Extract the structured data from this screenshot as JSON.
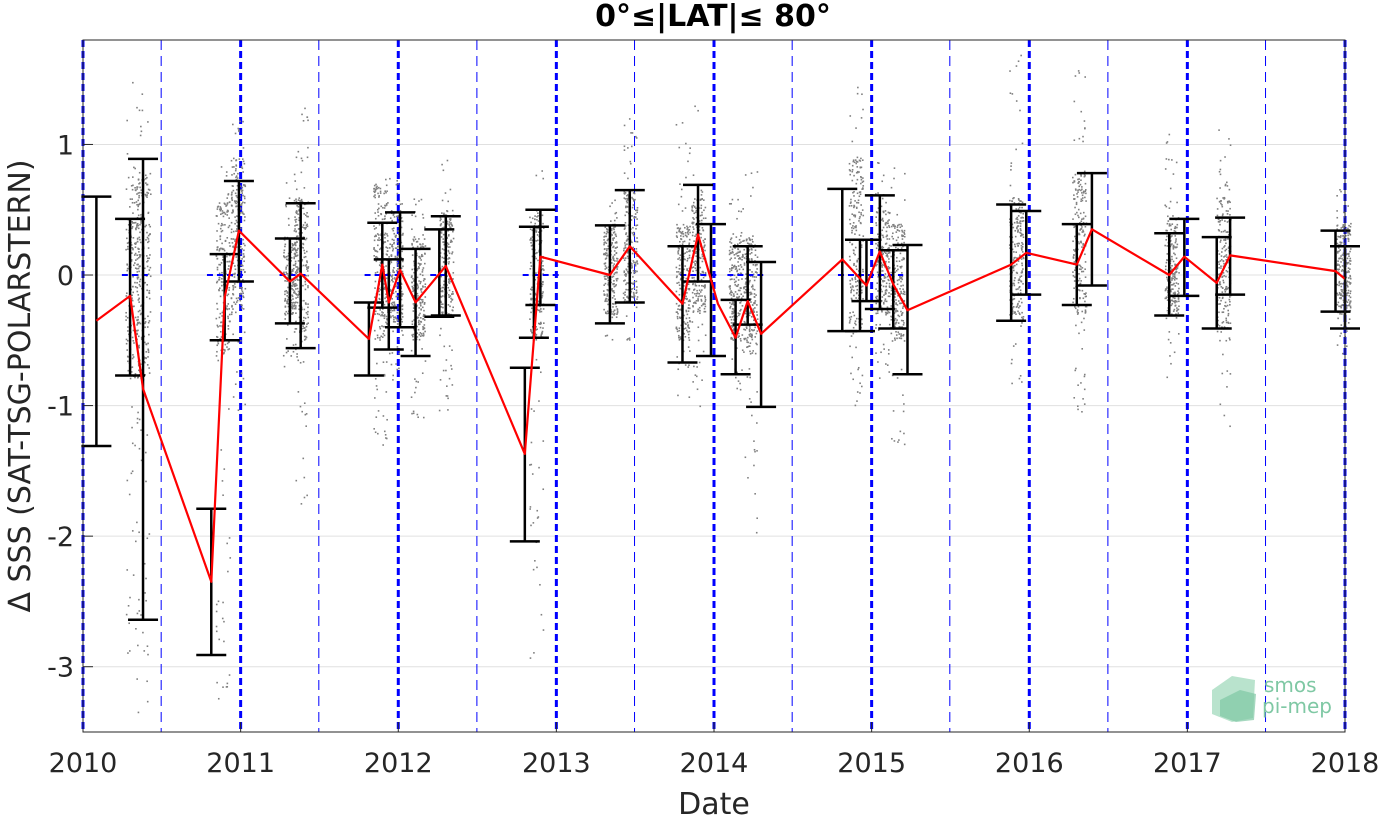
{
  "chart_data": {
    "type": "scatter",
    "title": "0°≤|LAT|≤ 80°",
    "xlabel": "Date",
    "ylabel": "Δ SSS (SAT-TSG-POLARSTERN)",
    "xlim": [
      "2010-01-01",
      "2018-01-01"
    ],
    "ylim": [
      -3.5,
      1.8
    ],
    "x_ticks": [
      "2010",
      "2011",
      "2012",
      "2013",
      "2014",
      "2015",
      "2016",
      "2017",
      "2018"
    ],
    "y_ticks": [
      -3,
      -2,
      -1,
      0,
      1
    ],
    "y_tick_labels": [
      "-3",
      "-2",
      "-1",
      "0",
      "1"
    ],
    "grid": true,
    "colors": {
      "mean_line": "#ff0000",
      "errorbar": "#000000",
      "scatter": "#808080",
      "year_lines": "#0000ff",
      "zero_segments": "#0000ff",
      "grid": "#e0e0e0"
    },
    "mean_series": [
      {
        "x": "2010-02-01",
        "y": -0.35
      },
      {
        "x": "2010-04-20",
        "y": -0.16
      },
      {
        "x": "2010-05-20",
        "y": -0.87
      },
      {
        "x": "2010-10-25",
        "y": -2.35
      },
      {
        "x": "2010-11-25",
        "y": -0.17
      },
      {
        "x": "2010-12-28",
        "y": 0.34
      },
      {
        "x": "2011-04-25",
        "y": -0.05
      },
      {
        "x": "2011-05-20",
        "y": 0.01
      },
      {
        "x": "2011-10-25",
        "y": -0.49
      },
      {
        "x": "2011-11-25",
        "y": 0.08
      },
      {
        "x": "2011-12-10",
        "y": -0.21
      },
      {
        "x": "2012-01-05",
        "y": 0.04
      },
      {
        "x": "2012-02-10",
        "y": -0.21
      },
      {
        "x": "2012-04-20",
        "y": 0.07
      },
      {
        "x": "2012-10-20",
        "y": -1.37
      },
      {
        "x": "2012-11-25",
        "y": 0.14
      },
      {
        "x": "2013-05-05",
        "y": 0.0
      },
      {
        "x": "2013-06-20",
        "y": 0.22
      },
      {
        "x": "2013-10-20",
        "y": -0.22
      },
      {
        "x": "2013-11-25",
        "y": 0.31
      },
      {
        "x": "2014-01-10",
        "y": -0.22
      },
      {
        "x": "2014-02-20",
        "y": -0.48
      },
      {
        "x": "2014-03-20",
        "y": -0.2
      },
      {
        "x": "2014-04-20",
        "y": -0.45
      },
      {
        "x": "2014-10-25",
        "y": 0.12
      },
      {
        "x": "2014-12-20",
        "y": -0.08
      },
      {
        "x": "2015-01-20",
        "y": 0.18
      },
      {
        "x": "2015-02-20",
        "y": -0.07
      },
      {
        "x": "2015-03-25",
        "y": -0.27
      },
      {
        "x": "2015-11-20",
        "y": 0.08
      },
      {
        "x": "2015-12-25",
        "y": 0.17
      },
      {
        "x": "2016-04-20",
        "y": 0.08
      },
      {
        "x": "2016-05-25",
        "y": 0.35
      },
      {
        "x": "2016-11-20",
        "y": 0.0
      },
      {
        "x": "2016-12-25",
        "y": 0.14
      },
      {
        "x": "2017-03-10",
        "y": -0.06
      },
      {
        "x": "2017-04-10",
        "y": 0.15
      },
      {
        "x": "2017-12-10",
        "y": 0.03
      },
      {
        "x": "2018-01-01",
        "y": -0.03
      }
    ],
    "error_bars": [
      {
        "x": "2010-02-01",
        "low": -1.31,
        "high": 0.6
      },
      {
        "x": "2010-04-20",
        "low": -0.77,
        "high": 0.43
      },
      {
        "x": "2010-05-20",
        "low": -2.64,
        "high": 0.89
      },
      {
        "x": "2010-10-25",
        "low": -2.91,
        "high": -1.79
      },
      {
        "x": "2010-11-25",
        "low": -0.5,
        "high": 0.16
      },
      {
        "x": "2010-12-28",
        "low": -0.05,
        "high": 0.72
      },
      {
        "x": "2011-04-25",
        "low": -0.37,
        "high": 0.28
      },
      {
        "x": "2011-05-20",
        "low": -0.56,
        "high": 0.55
      },
      {
        "x": "2011-10-25",
        "low": -0.77,
        "high": -0.21
      },
      {
        "x": "2011-11-25",
        "low": -0.25,
        "high": 0.4
      },
      {
        "x": "2011-12-10",
        "low": -0.57,
        "high": 0.12
      },
      {
        "x": "2012-01-05",
        "low": -0.4,
        "high": 0.48
      },
      {
        "x": "2012-02-10",
        "low": -0.62,
        "high": 0.2
      },
      {
        "x": "2012-04-05",
        "low": -0.32,
        "high": 0.35
      },
      {
        "x": "2012-04-20",
        "low": -0.31,
        "high": 0.45
      },
      {
        "x": "2012-10-20",
        "low": -2.04,
        "high": -0.71
      },
      {
        "x": "2012-11-10",
        "low": -0.48,
        "high": 0.37
      },
      {
        "x": "2012-11-25",
        "low": -0.23,
        "high": 0.5
      },
      {
        "x": "2013-05-05",
        "low": -0.37,
        "high": 0.38
      },
      {
        "x": "2013-06-20",
        "low": -0.21,
        "high": 0.65
      },
      {
        "x": "2013-10-20",
        "low": -0.67,
        "high": 0.22
      },
      {
        "x": "2013-11-25",
        "low": -0.05,
        "high": 0.69
      },
      {
        "x": "2013-12-25",
        "low": -0.62,
        "high": 0.39
      },
      {
        "x": "2014-02-20",
        "low": -0.76,
        "high": -0.19
      },
      {
        "x": "2014-03-20",
        "low": -0.38,
        "high": 0.22
      },
      {
        "x": "2014-04-20",
        "low": -1.01,
        "high": 0.1
      },
      {
        "x": "2014-10-25",
        "low": -0.43,
        "high": 0.66
      },
      {
        "x": "2014-12-05",
        "low": -0.43,
        "high": 0.27
      },
      {
        "x": "2014-12-20",
        "low": -0.2,
        "high": 0.27
      },
      {
        "x": "2015-01-20",
        "low": -0.26,
        "high": 0.61
      },
      {
        "x": "2015-02-20",
        "low": -0.41,
        "high": 0.19
      },
      {
        "x": "2015-03-25",
        "low": -0.76,
        "high": 0.23
      },
      {
        "x": "2015-11-20",
        "low": -0.35,
        "high": 0.54
      },
      {
        "x": "2015-12-25",
        "low": -0.15,
        "high": 0.49
      },
      {
        "x": "2016-04-20",
        "low": -0.23,
        "high": 0.39
      },
      {
        "x": "2016-05-25",
        "low": -0.08,
        "high": 0.78
      },
      {
        "x": "2016-11-20",
        "low": -0.31,
        "high": 0.32
      },
      {
        "x": "2016-12-25",
        "low": -0.16,
        "high": 0.43
      },
      {
        "x": "2017-03-10",
        "low": -0.41,
        "high": 0.29
      },
      {
        "x": "2017-04-10",
        "low": -0.15,
        "high": 0.44
      },
      {
        "x": "2017-12-10",
        "low": -0.28,
        "high": 0.34
      },
      {
        "x": "2018-01-01",
        "low": -0.41,
        "high": 0.22
      }
    ],
    "scatter_columns": [
      {
        "x": "2010-04-25",
        "min": -2.95,
        "max": 1.65,
        "core_min": -0.8,
        "core_max": 0.7
      },
      {
        "x": "2010-05-20",
        "min": -3.45,
        "max": 1.5,
        "core_min": -0.8,
        "core_max": 0.8
      },
      {
        "x": "2010-11-20",
        "min": -3.3,
        "max": 0.9,
        "core_min": -0.6,
        "core_max": 0.6
      },
      {
        "x": "2010-12-25",
        "min": -1.1,
        "max": 1.25,
        "core_min": -0.3,
        "core_max": 0.9
      },
      {
        "x": "2011-04-25",
        "min": -0.7,
        "max": 0.8,
        "core_min": -0.3,
        "core_max": 0.3
      },
      {
        "x": "2011-05-20",
        "min": -1.8,
        "max": 1.35,
        "core_min": -0.5,
        "core_max": 0.6
      },
      {
        "x": "2011-11-20",
        "min": -1.3,
        "max": 0.85,
        "core_min": -0.5,
        "core_max": 0.7
      },
      {
        "x": "2011-12-25",
        "min": -0.8,
        "max": 0.75,
        "core_min": -0.4,
        "core_max": 0.5
      },
      {
        "x": "2012-02-15",
        "min": -1.1,
        "max": 0.6,
        "core_min": -0.5,
        "core_max": 0.3
      },
      {
        "x": "2012-04-20",
        "min": -1.1,
        "max": 0.95,
        "core_min": -0.3,
        "core_max": 0.5
      },
      {
        "x": "2012-11-15",
        "min": -3.0,
        "max": 0.85,
        "core_min": -0.5,
        "core_max": 0.5
      },
      {
        "x": "2013-05-05",
        "min": -0.5,
        "max": 0.6,
        "core_min": -0.3,
        "core_max": 0.4
      },
      {
        "x": "2013-06-20",
        "min": -0.5,
        "max": 1.3,
        "core_min": -0.2,
        "core_max": 0.65
      },
      {
        "x": "2013-10-20",
        "min": -0.95,
        "max": 1.3,
        "core_min": -0.5,
        "core_max": 0.4
      },
      {
        "x": "2013-11-25",
        "min": -1.0,
        "max": 1.5,
        "core_min": -0.3,
        "core_max": 0.6
      },
      {
        "x": "2014-02-20",
        "min": -0.9,
        "max": 0.65,
        "core_min": -0.5,
        "core_max": 0.3
      },
      {
        "x": "2014-03-25",
        "min": -2.0,
        "max": 0.8,
        "core_min": -0.6,
        "core_max": 0.3
      },
      {
        "x": "2014-11-25",
        "min": -1.0,
        "max": 1.45,
        "core_min": -0.4,
        "core_max": 0.9
      },
      {
        "x": "2015-01-25",
        "min": -0.8,
        "max": 0.9,
        "core_min": -0.3,
        "core_max": 0.5
      },
      {
        "x": "2015-03-01",
        "min": -1.3,
        "max": 0.9,
        "core_min": -0.5,
        "core_max": 0.4
      },
      {
        "x": "2015-12-01",
        "min": -0.85,
        "max": 1.7,
        "core_min": -0.3,
        "core_max": 0.6
      },
      {
        "x": "2016-04-25",
        "min": -1.05,
        "max": 1.75,
        "core_min": -0.3,
        "core_max": 0.8
      },
      {
        "x": "2016-11-25",
        "min": -0.9,
        "max": 1.1,
        "core_min": -0.3,
        "core_max": 0.4
      },
      {
        "x": "2017-03-25",
        "min": -1.2,
        "max": 1.25,
        "core_min": -0.4,
        "core_max": 0.6
      },
      {
        "x": "2017-12-28",
        "min": -0.6,
        "max": 0.7,
        "core_min": -0.3,
        "core_max": 0.4
      }
    ],
    "zero_segments": [
      [
        "2010-04-01",
        "2010-06-01"
      ],
      [
        "2010-10-15",
        "2011-01-15"
      ],
      [
        "2011-04-01",
        "2011-06-01"
      ],
      [
        "2011-10-15",
        "2012-01-15"
      ],
      [
        "2012-03-15",
        "2012-05-01"
      ],
      [
        "2012-10-15",
        "2013-01-15"
      ],
      [
        "2013-10-15",
        "2014-01-15"
      ],
      [
        "2014-02-01",
        "2014-04-25"
      ],
      [
        "2014-10-15",
        "2015-03-15"
      ]
    ],
    "year_lines": [
      "2010",
      "2011",
      "2012",
      "2013",
      "2014",
      "2015",
      "2016",
      "2017",
      "2018"
    ],
    "half_year_lines": [
      "2010-07-01",
      "2011-07-01",
      "2012-07-01",
      "2013-07-01",
      "2014-07-01",
      "2015-07-01",
      "2016-07-01",
      "2017-07-01"
    ]
  },
  "logo": {
    "line1": "smos",
    "line2": "pi-mep"
  }
}
